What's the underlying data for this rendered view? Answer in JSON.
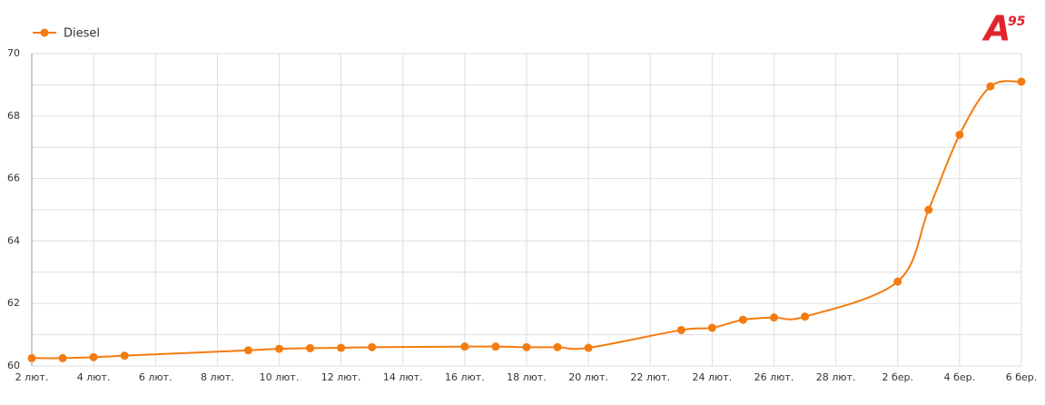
{
  "logo": {
    "letter": "A",
    "number": "95"
  },
  "chart_data": {
    "type": "line",
    "x": [
      "2 лют.",
      "3 лют.",
      "4 лют.",
      "5 лют.",
      "9 лют.",
      "10 лют.",
      "11 лют.",
      "12 лют.",
      "13 лют.",
      "16 лют.",
      "17 лют.",
      "18 лют.",
      "19 лют.",
      "20 лют.",
      "23 лют.",
      "24 лют.",
      "25 лют.",
      "26 лют.",
      "27 лют.",
      "2 бер.",
      "3 бер.",
      "4 бер.",
      "5 бер.",
      "6 бер."
    ],
    "series": [
      {
        "name": "Diesel",
        "color": "#f47b0f",
        "values": [
          60.25,
          60.25,
          60.28,
          60.33,
          60.5,
          60.55,
          60.57,
          60.58,
          60.6,
          60.62,
          60.62,
          60.6,
          60.6,
          60.58,
          61.15,
          61.22,
          61.48,
          61.55,
          61.58,
          62.7,
          65.0,
          67.4,
          68.95,
          69.1
        ]
      }
    ],
    "xticks": [
      "2 лют.",
      "4 лют.",
      "6 лют.",
      "8 лют.",
      "10 лют.",
      "12 лют.",
      "14 лют.",
      "16 лют.",
      "18 лют.",
      "20 лют.",
      "22 лют.",
      "24 лют.",
      "26 лют.",
      "28 лют.",
      "2 бер.",
      "4 бер.",
      "6 бер."
    ],
    "ylim": [
      60,
      70
    ],
    "yticks": [
      60,
      62,
      64,
      66,
      68,
      70
    ],
    "yminor": [
      61,
      63,
      65,
      67,
      69
    ],
    "grid": true,
    "legend": "top-left"
  }
}
